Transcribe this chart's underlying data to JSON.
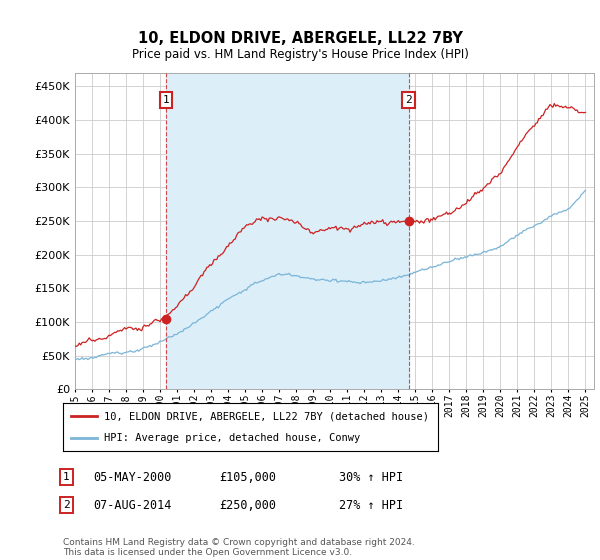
{
  "title": "10, ELDON DRIVE, ABERGELE, LL22 7BY",
  "subtitle": "Price paid vs. HM Land Registry's House Price Index (HPI)",
  "legend_line1": "10, ELDON DRIVE, ABERGELE, LL22 7BY (detached house)",
  "legend_line2": "HPI: Average price, detached house, Conwy",
  "sale1_date": "05-MAY-2000",
  "sale1_price": "£105,000",
  "sale1_hpi": "30% ↑ HPI",
  "sale2_date": "07-AUG-2014",
  "sale2_price": "£250,000",
  "sale2_hpi": "27% ↑ HPI",
  "footer": "Contains HM Land Registry data © Crown copyright and database right 2024.\nThis data is licensed under the Open Government Licence v3.0.",
  "hpi_color": "#7ab5d8",
  "price_color": "#cc2222",
  "sale_marker_color": "#cc2222",
  "annotation_box_color": "#cc2222",
  "shaded_color": "#dceef8",
  "ylim": [
    0,
    470000
  ],
  "yticks": [
    0,
    50000,
    100000,
    150000,
    200000,
    250000,
    300000,
    350000,
    400000,
    450000
  ],
  "background_color": "#ffffff",
  "grid_color": "#cccccc",
  "sale1_x": 2000.35,
  "sale1_y": 105000,
  "sale2_x": 2014.6,
  "sale2_y": 250000,
  "xmin": 1995,
  "xmax": 2025.5
}
